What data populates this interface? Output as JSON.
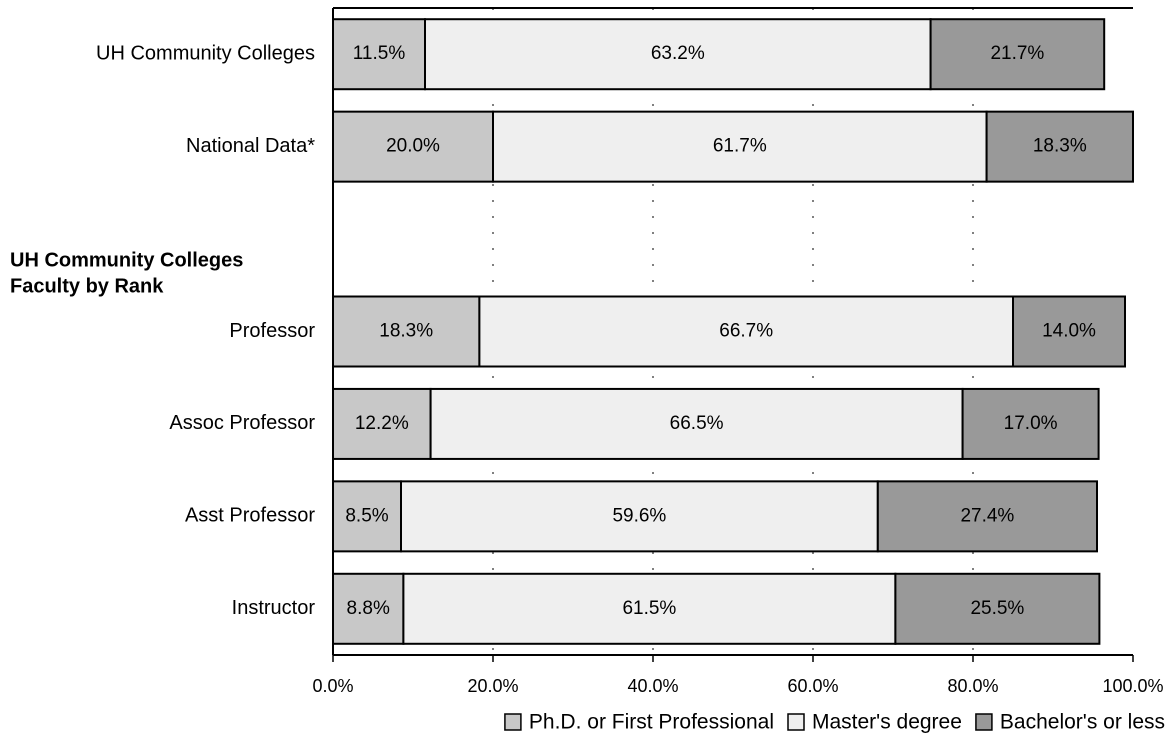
{
  "chart_data": {
    "type": "stacked-barh",
    "categories": [
      "UH Community Colleges",
      "National Data*",
      null,
      "Professor",
      "Assoc Professor",
      "Asst Professor",
      "Instructor"
    ],
    "section_title": [
      "UH Community Colleges",
      "Faculty by Rank"
    ],
    "series": [
      {
        "name": "Ph.D. or First Professional",
        "color": "#c8c8c8",
        "values": [
          11.5,
          20.0,
          null,
          18.3,
          12.2,
          8.5,
          8.8
        ],
        "value_labels": [
          "11.5%",
          "20.0%",
          null,
          "18.3%",
          "12.2%",
          "8.5%",
          "8.8%"
        ]
      },
      {
        "name": "Master's degree",
        "color": "#efefef",
        "values": [
          63.2,
          61.7,
          null,
          66.7,
          66.5,
          59.6,
          61.5
        ],
        "value_labels": [
          "63.2%",
          "61.7%",
          null,
          "66.7%",
          "66.5%",
          "59.6%",
          "61.5%"
        ]
      },
      {
        "name": "Bachelor's or less",
        "color": "#999999",
        "values": [
          21.7,
          18.3,
          null,
          14.0,
          17.0,
          27.4,
          25.5
        ],
        "value_labels": [
          "21.7%",
          "18.3%",
          null,
          "14.0%",
          "17.0%",
          "27.4%",
          "25.5%"
        ]
      }
    ],
    "xlim": [
      0,
      100
    ],
    "xticks": [
      {
        "value": 0,
        "label": "0.0%"
      },
      {
        "value": 20,
        "label": "20.0%"
      },
      {
        "value": 40,
        "label": "40.0%"
      },
      {
        "value": 60,
        "label": "60.0%"
      },
      {
        "value": 80,
        "label": "80.0%"
      },
      {
        "value": 100,
        "label": "100.0%"
      }
    ],
    "grid": true,
    "legend": "bottom"
  }
}
